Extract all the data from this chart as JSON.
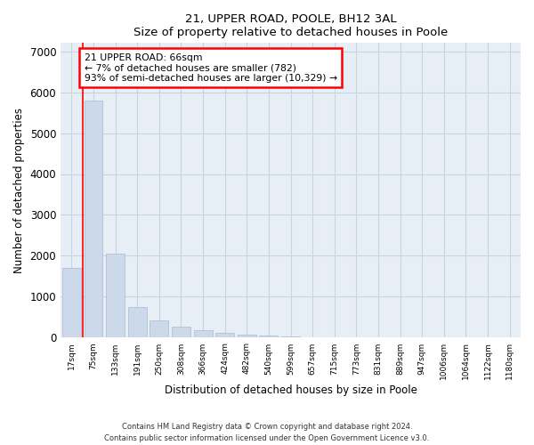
{
  "title1": "21, UPPER ROAD, POOLE, BH12 3AL",
  "title2": "Size of property relative to detached houses in Poole",
  "xlabel": "Distribution of detached houses by size in Poole",
  "ylabel": "Number of detached properties",
  "bar_color": "#ccd9ea",
  "bar_edge_color": "#aabbcc",
  "grid_color": "#c8d4e3",
  "background_color": "#e8eef6",
  "categories": [
    "17sqm",
    "75sqm",
    "133sqm",
    "191sqm",
    "250sqm",
    "308sqm",
    "366sqm",
    "424sqm",
    "482sqm",
    "540sqm",
    "599sqm",
    "657sqm",
    "715sqm",
    "773sqm",
    "831sqm",
    "889sqm",
    "947sqm",
    "1006sqm",
    "1064sqm",
    "1122sqm",
    "1180sqm"
  ],
  "values": [
    1700,
    5800,
    2050,
    750,
    430,
    265,
    175,
    120,
    75,
    50,
    30,
    18,
    10,
    0,
    0,
    0,
    0,
    0,
    0,
    0,
    0
  ],
  "red_line_x": 0.5,
  "annotation_text": "21 UPPER ROAD: 66sqm\n← 7% of detached houses are smaller (782)\n93% of semi-detached houses are larger (10,329) →",
  "ylim": [
    0,
    7200
  ],
  "yticks": [
    0,
    1000,
    2000,
    3000,
    4000,
    5000,
    6000,
    7000
  ],
  "footnote1": "Contains HM Land Registry data © Crown copyright and database right 2024.",
  "footnote2": "Contains public sector information licensed under the Open Government Licence v3.0."
}
